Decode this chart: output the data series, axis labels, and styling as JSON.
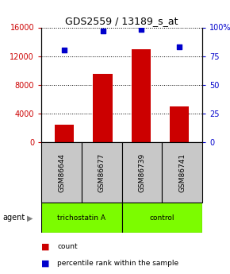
{
  "title": "GDS2559 / 13189_s_at",
  "categories": [
    "GSM86644",
    "GSM86677",
    "GSM86739",
    "GSM86741"
  ],
  "bar_values": [
    2500,
    9500,
    13000,
    5000
  ],
  "percentile_values": [
    80,
    97,
    98,
    83
  ],
  "bar_color": "#cc0000",
  "dot_color": "#0000cc",
  "left_ylim": [
    0,
    16000
  ],
  "left_yticks": [
    0,
    4000,
    8000,
    12000,
    16000
  ],
  "right_ylim": [
    0,
    100
  ],
  "right_yticks": [
    0,
    25,
    50,
    75,
    100
  ],
  "right_yticklabels": [
    "0",
    "25",
    "50",
    "75",
    "100%"
  ],
  "agent_labels": [
    "trichostatin A",
    "control"
  ],
  "agent_row_color": "#7cfc00",
  "sample_row_color": "#c8c8c8",
  "legend_count_label": "count",
  "legend_pct_label": "percentile rank within the sample",
  "agent_text": "agent",
  "bg_color": "#ffffff"
}
